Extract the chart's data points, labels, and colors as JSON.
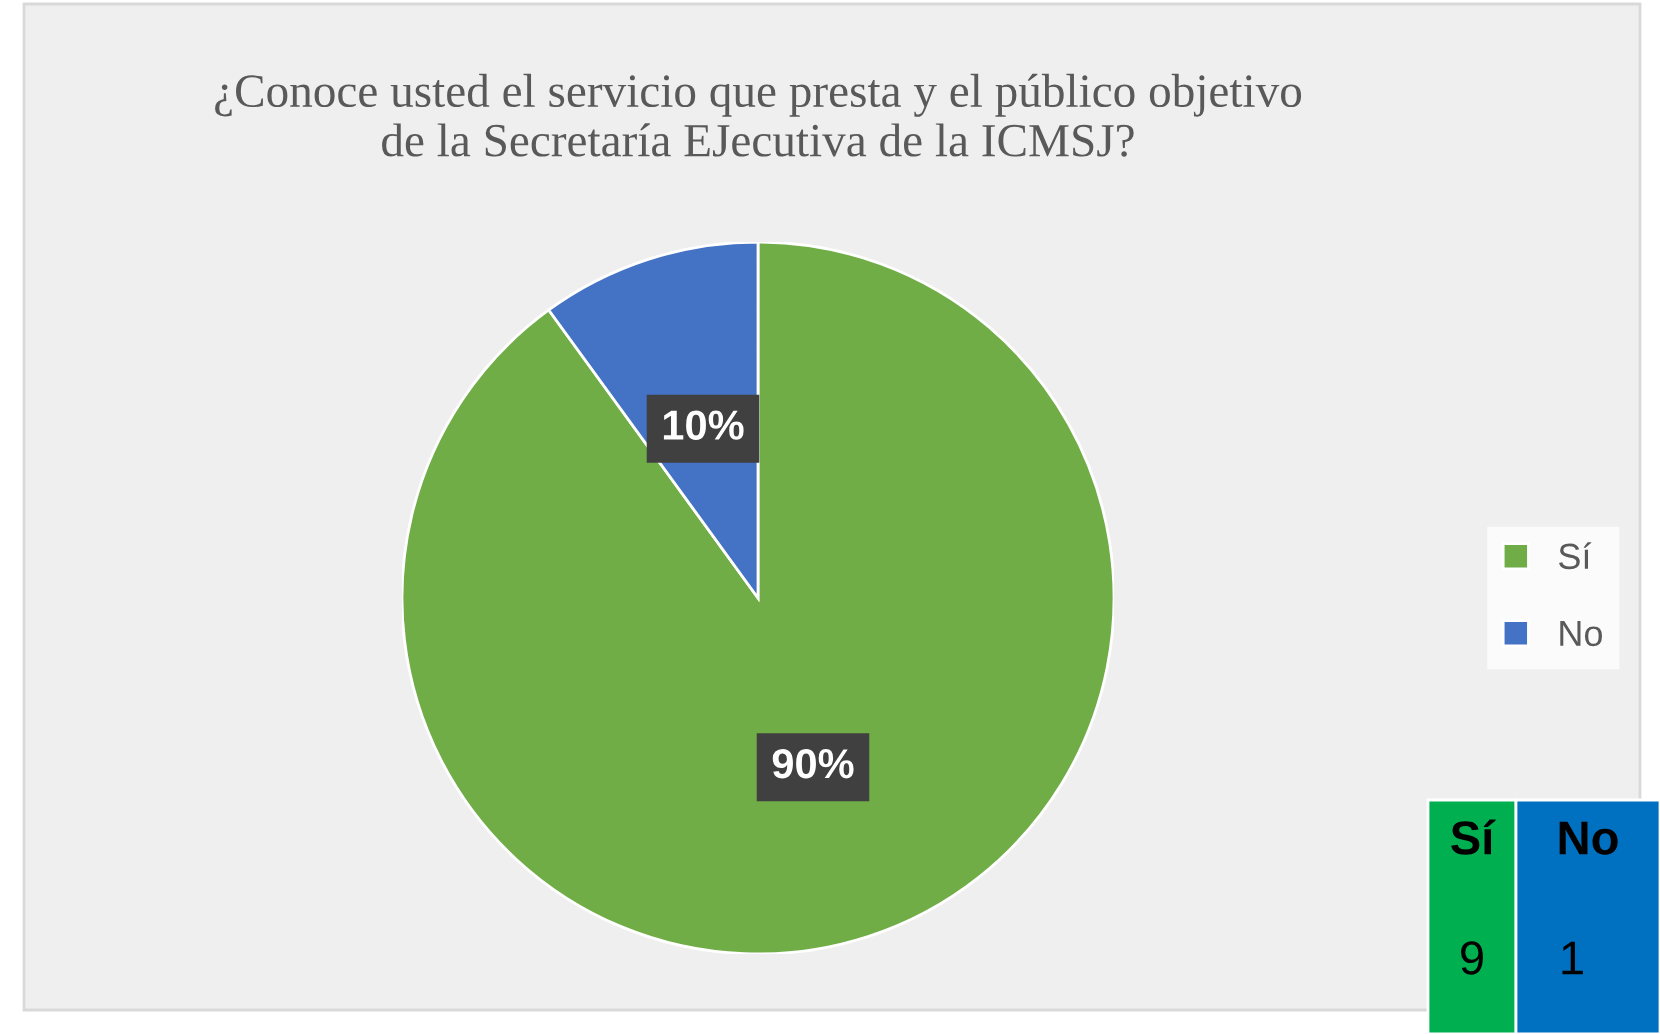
{
  "chart_data": {
    "type": "pie",
    "title": "¿Conoce usted el servicio que presta y el público objetivo\nde la Secretaría EJecutiva de la ICMSJ?",
    "categories": [
      "Sí",
      "No"
    ],
    "values": [
      90,
      10
    ],
    "annotations": [
      "9",
      "1"
    ],
    "value_labels": [
      "90%",
      "10%"
    ],
    "colors": [
      "#70ad47",
      "#4472c4"
    ],
    "legend": "right"
  }
}
